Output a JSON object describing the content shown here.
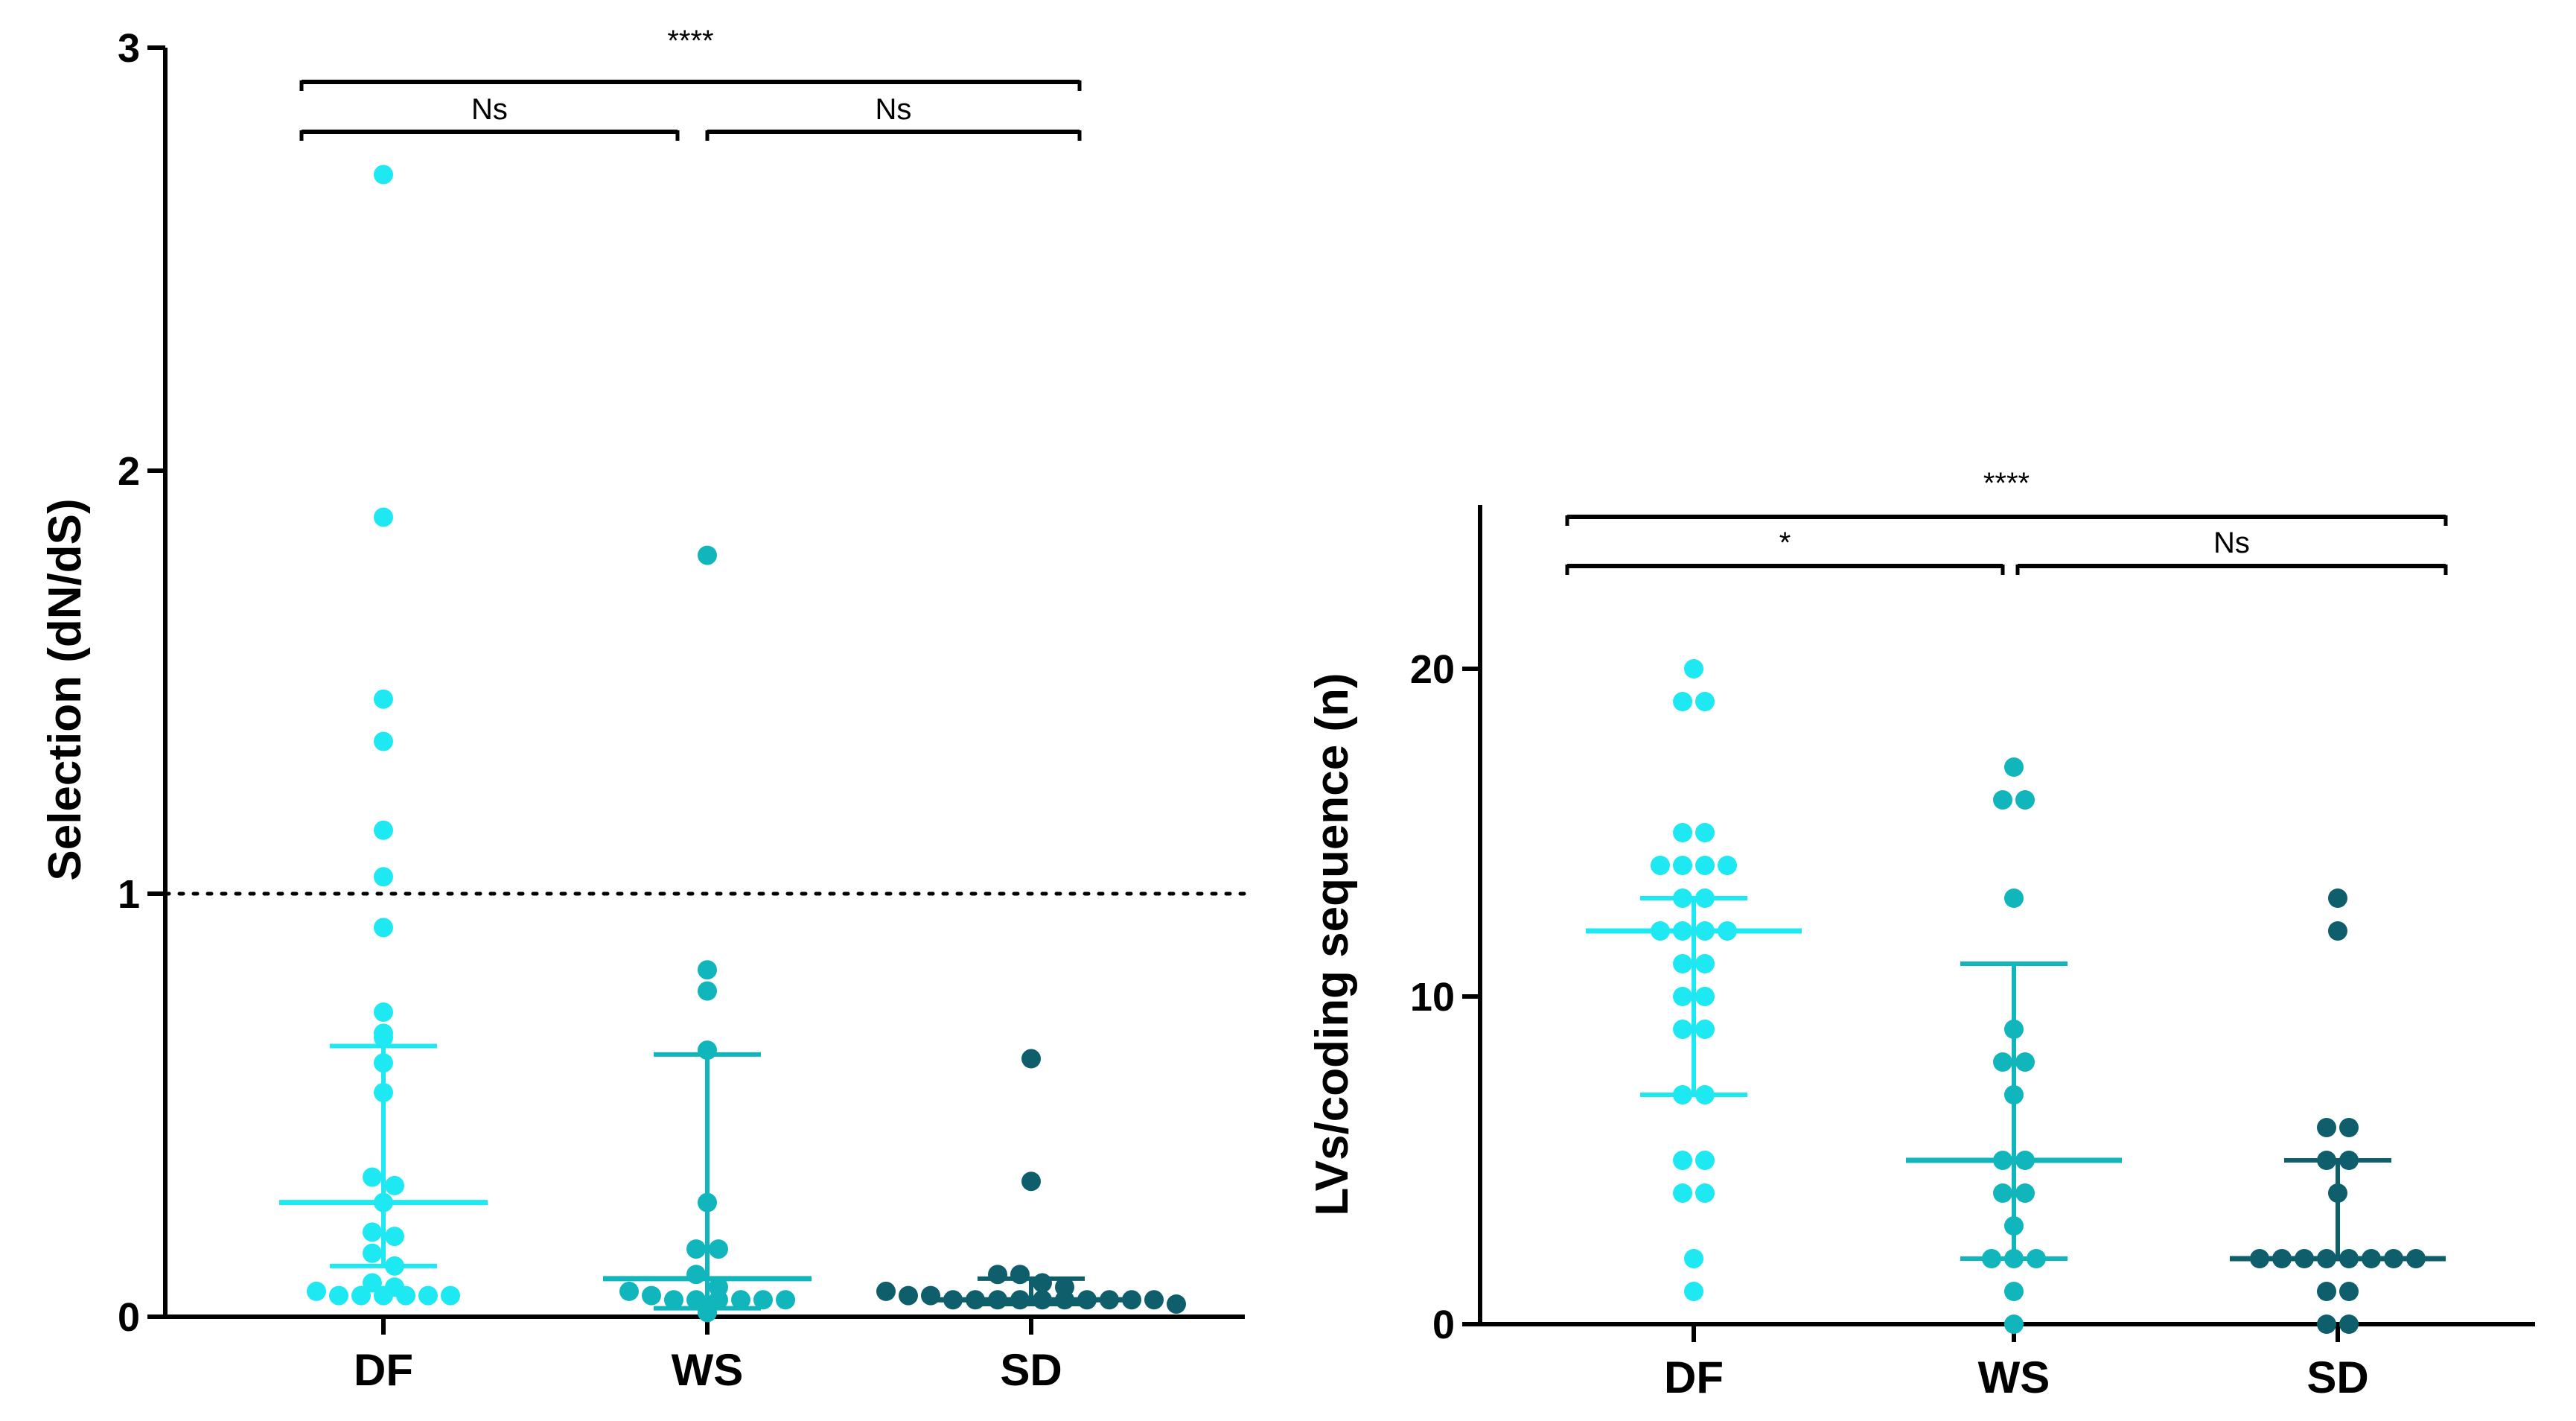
{
  "chart_data": [
    {
      "type": "scatter",
      "subtype": "dot-plot-median-iqr",
      "ylabel": "Selection (dN/dS)",
      "xlabel": "",
      "ylim": [
        0,
        3
      ],
      "yticks": [
        0,
        1,
        2,
        3
      ],
      "ytick_labels": [
        "0",
        "1",
        "2",
        "3"
      ],
      "categories": [
        "DF",
        "WS",
        "SD"
      ],
      "reference_line": {
        "y": 1,
        "style": "dotted"
      },
      "series": [
        {
          "name": "DF",
          "color": "#1ee8f2",
          "median": 0.27,
          "q1": 0.12,
          "q3": 0.64,
          "points": [
            2.7,
            1.89,
            1.46,
            1.36,
            1.15,
            1.04,
            0.92,
            0.72,
            0.67,
            0.66,
            0.6,
            0.53,
            0.33,
            0.31,
            0.27,
            0.2,
            0.19,
            0.15,
            0.12,
            0.08,
            0.07,
            0.06,
            0.05,
            0.05,
            0.05,
            0.05,
            0.05,
            0.05
          ]
        },
        {
          "name": "WS",
          "color": "#11b6bd",
          "median": 0.09,
          "q1": 0.02,
          "q3": 0.62,
          "points": [
            1.8,
            0.82,
            0.77,
            0.63,
            0.27,
            0.16,
            0.16,
            0.1,
            0.07,
            0.06,
            0.05,
            0.04,
            0.04,
            0.04,
            0.04,
            0.04,
            0.04,
            0.01
          ]
        },
        {
          "name": "SD",
          "color": "#0e5f6b",
          "median": 0.04,
          "q1": 0.03,
          "q3": 0.09,
          "points": [
            0.61,
            0.32,
            0.1,
            0.1,
            0.08,
            0.07,
            0.06,
            0.05,
            0.05,
            0.04,
            0.04,
            0.04,
            0.04,
            0.04,
            0.04,
            0.04,
            0.04,
            0.04,
            0.04,
            0.03
          ]
        }
      ],
      "comparisons": [
        {
          "from": "DF",
          "to": "SD",
          "label": "****"
        },
        {
          "from": "DF",
          "to": "WS",
          "label": "Ns"
        },
        {
          "from": "WS",
          "to": "SD",
          "label": "Ns"
        }
      ]
    },
    {
      "type": "scatter",
      "subtype": "dot-plot-median-iqr",
      "ylabel": "LVs/coding sequence (n)",
      "xlabel": "",
      "ylim": [
        0,
        25
      ],
      "yticks": [
        0,
        10,
        20
      ],
      "ytick_labels": [
        "0",
        "10",
        "20"
      ],
      "categories": [
        "DF",
        "WS",
        "SD"
      ],
      "series": [
        {
          "name": "DF",
          "color": "#1ee8f2",
          "median": 12,
          "q1": 7,
          "q3": 13,
          "points": [
            20,
            19,
            19,
            15,
            15,
            14,
            14,
            14,
            14,
            13,
            13,
            12,
            12,
            12,
            12,
            11,
            11,
            10,
            10,
            9,
            9,
            7,
            7,
            5,
            5,
            4,
            4,
            2,
            1
          ]
        },
        {
          "name": "WS",
          "color": "#11b6bd",
          "median": 5,
          "q1": 2,
          "q3": 11,
          "points": [
            17,
            16,
            16,
            13,
            9,
            8,
            8,
            7,
            5,
            5,
            4,
            4,
            3,
            2,
            2,
            2,
            1,
            0
          ]
        },
        {
          "name": "SD",
          "color": "#0e5f6b",
          "median": 2,
          "q1": 2,
          "q3": 5,
          "points": [
            13,
            12,
            6,
            6,
            5,
            5,
            4,
            2,
            2,
            2,
            2,
            2,
            2,
            2,
            2,
            1,
            1,
            0,
            0
          ]
        }
      ],
      "comparisons": [
        {
          "from": "DF",
          "to": "SD",
          "label": "****"
        },
        {
          "from": "DF",
          "to": "WS",
          "label": "*"
        },
        {
          "from": "WS",
          "to": "SD",
          "label": "Ns"
        }
      ]
    }
  ]
}
